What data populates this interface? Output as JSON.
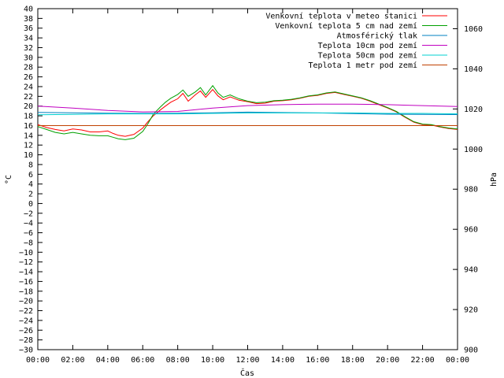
{
  "chart_data": {
    "type": "line",
    "xlabel": "Čas",
    "ylabel": "°C",
    "y2label": "hPa",
    "xlim": [
      0,
      24
    ],
    "ylim": [
      -30,
      40
    ],
    "y2lim": [
      900,
      1070
    ],
    "grid": false,
    "legend_position": "top-right",
    "x_tick_labels": [
      "00:00",
      "02:00",
      "04:00",
      "06:00",
      "08:00",
      "10:00",
      "12:00",
      "14:00",
      "16:00",
      "18:00",
      "20:00",
      "22:00",
      "00:00"
    ],
    "y_ticks": [
      40,
      38,
      36,
      34,
      32,
      30,
      28,
      26,
      24,
      22,
      20,
      18,
      16,
      14,
      12,
      10,
      8,
      6,
      4,
      2,
      0,
      -2,
      -4,
      -6,
      -8,
      -10,
      -12,
      -14,
      -16,
      -18,
      -20,
      -22,
      -24,
      -26,
      -28,
      -30
    ],
    "y2_ticks": [
      1060,
      1040,
      1020,
      1000,
      980,
      960,
      940,
      920,
      900
    ],
    "series": [
      {
        "name": "Venkovní teplota v meteo stanici",
        "color": "#ff0000",
        "axis": "left",
        "x": [
          0,
          0.5,
          1,
          1.5,
          2,
          2.5,
          3,
          3.5,
          4,
          4.3,
          4.6,
          5,
          5.5,
          6,
          6.3,
          6.6,
          7,
          7.3,
          7.6,
          8,
          8.3,
          8.6,
          9,
          9.3,
          9.6,
          10,
          10.3,
          10.6,
          11,
          11.5,
          12,
          12.5,
          13,
          13.5,
          14,
          14.5,
          15,
          15.5,
          16,
          16.5,
          17,
          17.5,
          18,
          18.5,
          19,
          19.5,
          20,
          20.5,
          21,
          21.5,
          22,
          22.5,
          23,
          23.5,
          24
        ],
        "y": [
          16.2,
          15.6,
          15.2,
          14.9,
          15.3,
          15.1,
          14.7,
          14.7,
          14.9,
          14.4,
          14.0,
          13.8,
          14.2,
          15.5,
          16.8,
          18.0,
          19.2,
          20.0,
          20.8,
          21.5,
          22.6,
          21.0,
          22.3,
          23.1,
          21.8,
          23.4,
          22.1,
          21.3,
          21.9,
          21.2,
          20.9,
          20.5,
          20.6,
          21.0,
          21.1,
          21.3,
          21.6,
          22.0,
          22.2,
          22.6,
          22.8,
          22.4,
          22.0,
          21.6,
          21.0,
          20.3,
          19.6,
          18.8,
          17.7,
          16.7,
          16.2,
          16.1,
          15.7,
          15.4,
          15.2
        ]
      },
      {
        "name": "Venkovní teplota 5 cm nad zemí",
        "color": "#00a000",
        "axis": "left",
        "x": [
          0,
          0.5,
          1,
          1.5,
          2,
          2.5,
          3,
          3.5,
          4,
          4.3,
          4.6,
          5,
          5.5,
          6,
          6.3,
          6.6,
          7,
          7.3,
          7.6,
          8,
          8.3,
          8.6,
          9,
          9.3,
          9.6,
          10,
          10.3,
          10.6,
          11,
          11.5,
          12,
          12.5,
          13,
          13.5,
          14,
          14.5,
          15,
          15.5,
          16,
          16.5,
          17,
          17.5,
          18,
          18.5,
          19,
          19.5,
          20,
          20.5,
          21,
          21.5,
          22,
          22.5,
          23,
          23.5,
          24
        ],
        "y": [
          15.8,
          15.2,
          14.6,
          14.3,
          14.6,
          14.3,
          14.0,
          13.9,
          13.9,
          13.6,
          13.3,
          13.1,
          13.4,
          14.8,
          16.4,
          18.3,
          19.8,
          20.8,
          21.6,
          22.4,
          23.3,
          22.0,
          22.9,
          23.8,
          22.3,
          24.2,
          22.7,
          21.8,
          22.3,
          21.5,
          21.0,
          20.7,
          20.8,
          21.1,
          21.2,
          21.4,
          21.7,
          22.1,
          22.3,
          22.7,
          22.9,
          22.5,
          22.1,
          21.7,
          21.1,
          20.4,
          19.7,
          18.9,
          17.8,
          16.8,
          16.3,
          16.2,
          15.8,
          15.5,
          15.3
        ]
      },
      {
        "name": "Atmosférický tlak",
        "color": "#0080c0",
        "axis": "right",
        "x": [
          0,
          2,
          4,
          6,
          8,
          10,
          12,
          14,
          16,
          18,
          20,
          22,
          24
        ],
        "y": [
          1018.3,
          1018.1,
          1017.9,
          1017.8,
          1017.9,
          1018.1,
          1018.4,
          1018.2,
          1018.0,
          1017.7,
          1017.4,
          1017.3,
          1017.2
        ]
      },
      {
        "name": "Teplota 10cm pod zemí",
        "color": "#c000c0",
        "axis": "left",
        "x": [
          0,
          2,
          4,
          6,
          8,
          10,
          12,
          14,
          16,
          18,
          20,
          22,
          24
        ],
        "y": [
          20.0,
          19.6,
          19.1,
          18.8,
          18.9,
          19.6,
          20.1,
          20.3,
          20.4,
          20.4,
          20.3,
          20.1,
          19.9
        ]
      },
      {
        "name": "Teplota 50cm pod zemí",
        "color": "#00d0d0",
        "axis": "left",
        "x": [
          0,
          2,
          4,
          6,
          8,
          10,
          12,
          14,
          16,
          18,
          20,
          22,
          24
        ],
        "y": [
          18.2,
          18.3,
          18.4,
          18.4,
          18.4,
          18.5,
          18.6,
          18.6,
          18.6,
          18.6,
          18.5,
          18.5,
          18.4
        ]
      },
      {
        "name": "Teplota 1 metr pod zemí",
        "color": "#c04000",
        "axis": "left",
        "x": [
          0,
          24
        ],
        "y": [
          16.0,
          16.0
        ]
      }
    ]
  }
}
